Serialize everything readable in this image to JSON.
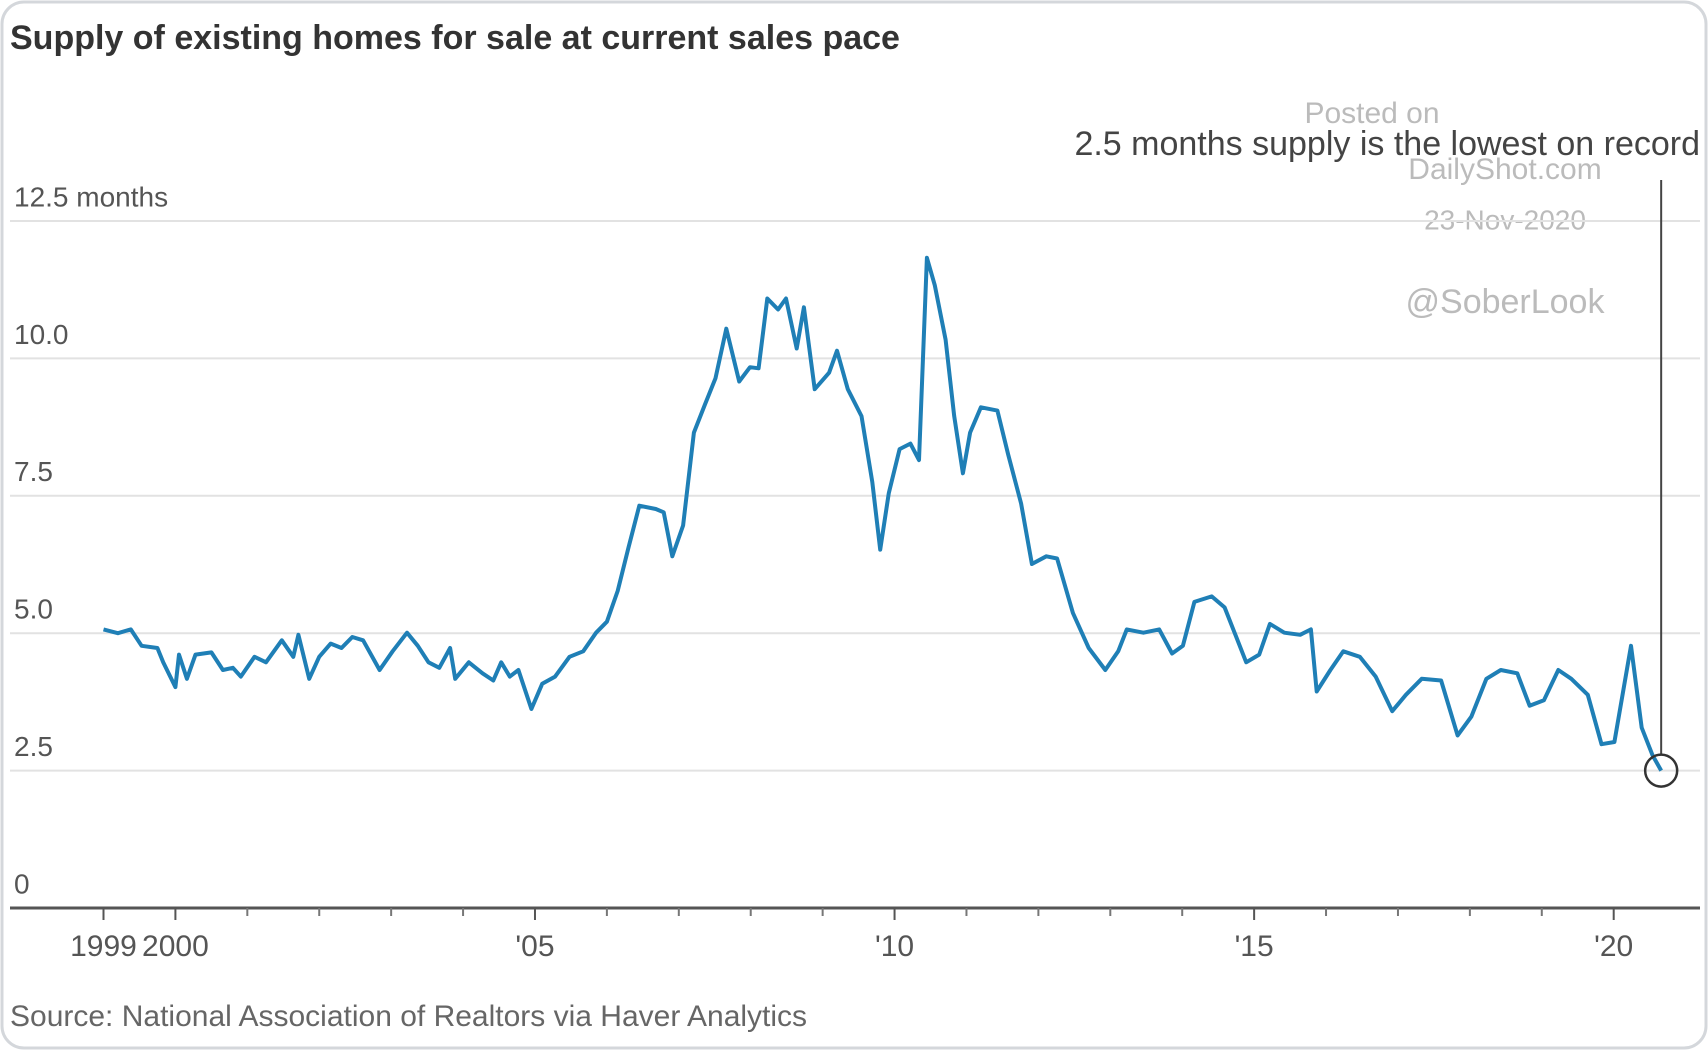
{
  "chart_data": {
    "type": "line",
    "title": "Supply of existing homes for sale at current sales pace",
    "annotation": "2.5 months supply is the lowest on record",
    "source": "Source: National Association of Realtors via Haver Analytics",
    "watermark": [
      "Posted on",
      "DailyShot.com",
      "23-Nov-2020",
      "@SoberLook"
    ],
    "color": "#1f7fb6",
    "x": [
      1999.0,
      1999.2,
      1999.38,
      1999.53,
      1999.75,
      1999.83,
      2000.0,
      2000.05,
      2000.16,
      2000.28,
      2000.5,
      2000.66,
      2000.8,
      2000.91,
      2001.1,
      2001.26,
      2001.48,
      2001.64,
      2001.71,
      2001.86,
      2002.0,
      2002.16,
      2002.31,
      2002.46,
      2002.61,
      2002.84,
      2003.02,
      2003.22,
      2003.37,
      2003.52,
      2003.67,
      2003.82,
      2003.89,
      2004.08,
      2004.27,
      2004.42,
      2004.53,
      2004.65,
      2004.77,
      2004.95,
      2005.1,
      2005.28,
      2005.48,
      2005.67,
      2005.85,
      2006.0,
      2006.15,
      2006.3,
      2006.45,
      2006.68,
      2006.79,
      2006.91,
      2007.06,
      2007.21,
      2007.36,
      2007.51,
      2007.66,
      2007.84,
      2007.99,
      2008.11,
      2008.23,
      2008.38,
      2008.49,
      2008.64,
      2008.74,
      2008.89,
      2009.09,
      2009.2,
      2009.35,
      2009.54,
      2009.69,
      2009.8,
      2009.92,
      2010.07,
      2010.22,
      2010.34,
      2010.45,
      2010.56,
      2010.71,
      2010.83,
      2010.95,
      2011.05,
      2011.2,
      2011.43,
      2011.58,
      2011.76,
      2011.91,
      2012.11,
      2012.26,
      2012.48,
      2012.7,
      2012.93,
      2013.11,
      2013.23,
      2013.46,
      2013.68,
      2013.86,
      2014.01,
      2014.17,
      2014.41,
      2014.59,
      2014.74,
      2014.89,
      2015.07,
      2015.22,
      2015.42,
      2015.64,
      2015.79,
      2015.87,
      2016.06,
      2016.24,
      2016.47,
      2016.69,
      2016.92,
      2017.11,
      2017.33,
      2017.6,
      2017.83,
      2018.02,
      2018.23,
      2018.43,
      2018.66,
      2018.83,
      2019.03,
      2019.23,
      2019.41,
      2019.64,
      2019.83,
      2020.01,
      2020.24,
      2020.39,
      2020.54,
      2020.66
    ],
    "values": [
      5.07,
      5.0,
      5.07,
      4.77,
      4.73,
      4.47,
      4.02,
      4.61,
      4.17,
      4.61,
      4.65,
      4.33,
      4.37,
      4.21,
      4.57,
      4.47,
      4.87,
      4.57,
      4.97,
      4.17,
      4.57,
      4.81,
      4.73,
      4.93,
      4.87,
      4.33,
      4.67,
      5.01,
      4.77,
      4.47,
      4.37,
      4.73,
      4.17,
      4.47,
      4.27,
      4.14,
      4.47,
      4.21,
      4.33,
      3.62,
      4.08,
      4.21,
      4.57,
      4.67,
      5.01,
      5.21,
      5.77,
      6.56,
      7.32,
      7.26,
      7.2,
      6.4,
      6.96,
      8.65,
      9.15,
      9.64,
      10.54,
      9.58,
      9.84,
      9.82,
      11.09,
      10.89,
      11.09,
      10.18,
      10.93,
      9.44,
      9.74,
      10.14,
      9.44,
      8.95,
      7.75,
      6.52,
      7.55,
      8.35,
      8.45,
      8.15,
      11.83,
      11.33,
      10.34,
      8.95,
      7.91,
      8.65,
      9.11,
      9.05,
      8.25,
      7.36,
      6.26,
      6.4,
      6.36,
      5.37,
      4.73,
      4.33,
      4.67,
      5.07,
      5.01,
      5.07,
      4.63,
      4.77,
      5.57,
      5.67,
      5.47,
      4.97,
      4.47,
      4.61,
      5.17,
      5.01,
      4.97,
      5.07,
      3.94,
      4.33,
      4.67,
      4.57,
      4.21,
      3.58,
      3.88,
      4.17,
      4.14,
      3.14,
      3.48,
      4.17,
      4.33,
      4.27,
      3.68,
      3.78,
      4.33,
      4.17,
      3.88,
      2.98,
      3.02,
      4.77,
      3.28,
      2.78,
      2.5
    ],
    "xlim": [
      1997.7,
      2021.2
    ],
    "xticks": [
      1999,
      2000,
      {
        "value": 2005,
        "label": "'05"
      },
      {
        "value": 2010,
        "label": "'10"
      },
      {
        "value": 2015,
        "label": "'15"
      },
      {
        "value": 2020,
        "label": "'20"
      }
    ],
    "xminorticks": [
      2001,
      2002,
      2003,
      2004,
      2006,
      2007,
      2008,
      2009,
      2011,
      2012,
      2013,
      2014,
      2016,
      2017,
      2018,
      2019
    ],
    "ylim": [
      0,
      12.5
    ],
    "yticks": [
      0,
      2.5,
      {
        "value": 5,
        "label": "5.0"
      },
      7.5,
      {
        "value": 10,
        "label": "10.0"
      },
      {
        "value": 12.5,
        "label": "12.5 months"
      }
    ],
    "grid": true
  }
}
